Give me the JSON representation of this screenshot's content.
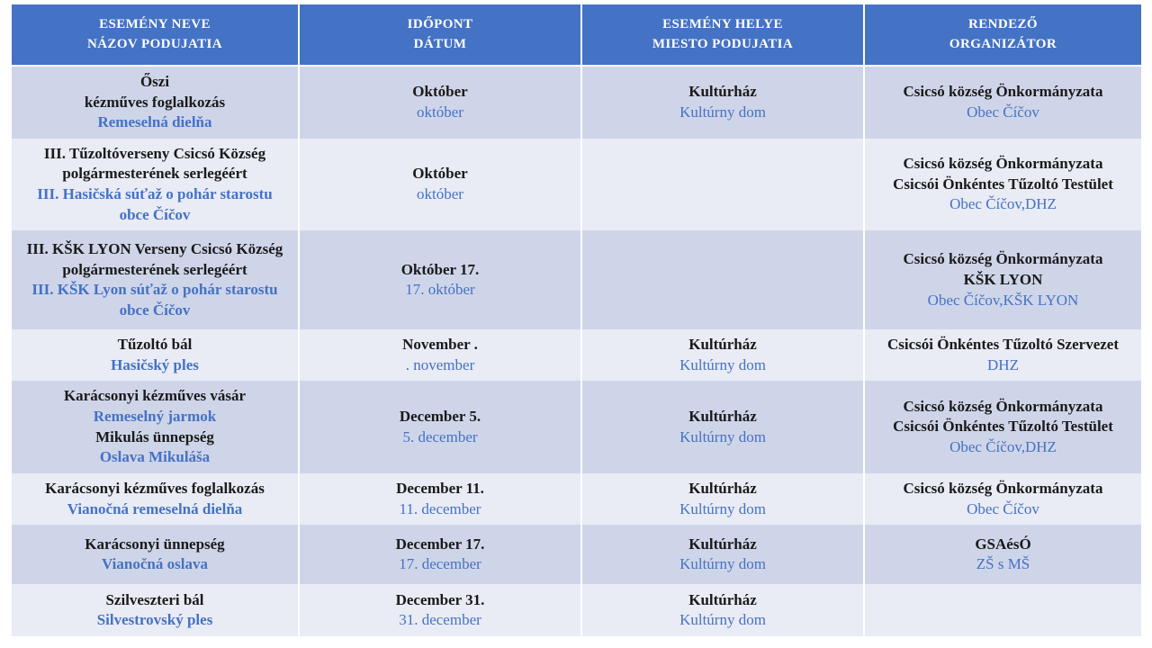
{
  "colors": {
    "header_bg": "#4472C4",
    "header_text": "#FFFFFF",
    "band_dark": "#CFD5E9",
    "band_light": "#E9EBF5",
    "text_black": "#1A1A1A",
    "text_blue": "#4472C4",
    "page_bg": "#FFFFFF"
  },
  "table": {
    "headers": [
      {
        "hu": "ESEMÉNY NEVE",
        "sk": "NÁZOV PODUJATIA"
      },
      {
        "hu": "IDŐPONT",
        "sk": "DÁTUM"
      },
      {
        "hu": "ESEMÉNY HELYE",
        "sk": "MIESTO PODUJATIA"
      },
      {
        "hu": "RENDEZŐ",
        "sk": "ORGANIZÁTOR"
      }
    ],
    "rows": [
      {
        "name": [
          {
            "t": "Őszi",
            "l": "hu"
          },
          {
            "t": "kézműves foglalkozás",
            "l": "hu"
          },
          {
            "t": "Remeselná dielňa",
            "l": "sk"
          }
        ],
        "time": [
          {
            "t": "Október",
            "l": "hu"
          },
          {
            "t": "október",
            "l": "sk"
          }
        ],
        "place": [
          {
            "t": "Kultúrház",
            "l": "hu"
          },
          {
            "t": "Kultúrny dom",
            "l": "sk"
          }
        ],
        "org": [
          {
            "t": "Csicsó község Önkormányzata",
            "l": "hu"
          },
          {
            "t": "Obec Číčov",
            "l": "sk"
          }
        ]
      },
      {
        "name": [
          {
            "t": "III. Tűzoltóverseny Csicsó Község polgármesterének serlegéért",
            "l": "hu"
          },
          {
            "t": "III. Hasičská súťaž o pohár starostu obce Číčov",
            "l": "sk"
          }
        ],
        "time": [
          {
            "t": "Október",
            "l": "hu"
          },
          {
            "t": "október",
            "l": "sk"
          }
        ],
        "place": [],
        "org": [
          {
            "t": "Csicsó község Önkormányzata",
            "l": "hu"
          },
          {
            "t": "Csicsói Önkéntes Tűzoltó Testület",
            "l": "hu"
          },
          {
            "t": "Obec Číčov,DHZ",
            "l": "sk"
          }
        ]
      },
      {
        "name": [
          {
            "t": "III. KŠK LYON Verseny Csicsó Község polgármesterének serlegéért",
            "l": "hu"
          },
          {
            "t": "III. KŠK Lyon súťaž o pohár starostu obce Číčov",
            "l": "sk"
          }
        ],
        "time": [
          {
            "t": "Október 17.",
            "l": "hu"
          },
          {
            "t": "17. október",
            "l": "sk"
          }
        ],
        "place": [],
        "org": [
          {
            "t": "Csicsó község Önkormányzata",
            "l": "hu"
          },
          {
            "t": "KŠK LYON",
            "l": "hu"
          },
          {
            "t": "Obec Číčov,KŠK LYON",
            "l": "sk"
          }
        ]
      },
      {
        "name": [
          {
            "t": "Tűzoltó bál",
            "l": "hu"
          },
          {
            "t": "Hasičský ples",
            "l": "sk"
          }
        ],
        "time": [
          {
            "t": "November .",
            "l": "hu"
          },
          {
            "t": ". november",
            "l": "sk"
          }
        ],
        "place": [
          {
            "t": "Kultúrház",
            "l": "hu"
          },
          {
            "t": "Kultúrny dom",
            "l": "sk"
          }
        ],
        "org": [
          {
            "t": "Csicsói Önkéntes Tűzoltó Szervezet",
            "l": "hu"
          },
          {
            "t": "DHZ",
            "l": "sk"
          }
        ]
      },
      {
        "name": [
          {
            "t": "Karácsonyi kézműves vásár",
            "l": "hu"
          },
          {
            "t": "Remeselný jarmok",
            "l": "sk"
          },
          {
            "t": "Mikulás ünnepség",
            "l": "hu"
          },
          {
            "t": "Oslava Mikuláša",
            "l": "sk"
          }
        ],
        "time": [
          {
            "t": "December 5.",
            "l": "hu"
          },
          {
            "t": "5. december",
            "l": "sk"
          }
        ],
        "place": [
          {
            "t": "Kultúrház",
            "l": "hu"
          },
          {
            "t": "Kultúrny dom",
            "l": "sk"
          }
        ],
        "org": [
          {
            "t": "Csicsó község Önkormányzata",
            "l": "hu"
          },
          {
            "t": "Csicsói Önkéntes Tűzoltó Testület",
            "l": "hu"
          },
          {
            "t": "Obec Číčov,DHZ",
            "l": "sk"
          }
        ]
      },
      {
        "name": [
          {
            "t": "Karácsonyi kézműves foglalkozás",
            "l": "hu"
          },
          {
            "t": "Vianočná remeselná dielňa",
            "l": "sk"
          }
        ],
        "time": [
          {
            "t": "December 11.",
            "l": "hu"
          },
          {
            "t": "11. december",
            "l": "sk"
          }
        ],
        "place": [
          {
            "t": "Kultúrház",
            "l": "hu"
          },
          {
            "t": "Kultúrny dom",
            "l": "sk"
          }
        ],
        "org": [
          {
            "t": "Csicsó község Önkormányzata",
            "l": "hu"
          },
          {
            "t": "Obec Číčov",
            "l": "sk"
          }
        ]
      },
      {
        "name": [
          {
            "t": "Karácsonyi ünnepség",
            "l": "hu"
          },
          {
            "t": "Vianočná oslava",
            "l": "sk"
          }
        ],
        "time": [
          {
            "t": "December 17.",
            "l": "hu"
          },
          {
            "t": "17. december",
            "l": "sk"
          }
        ],
        "place": [
          {
            "t": "Kultúrház",
            "l": "hu"
          },
          {
            "t": "Kultúrny dom",
            "l": "sk"
          }
        ],
        "org": [
          {
            "t": "GSAésÓ",
            "l": "hu"
          },
          {
            "t": "ZŠ s MŠ",
            "l": "sk"
          }
        ]
      },
      {
        "name": [
          {
            "t": "Szilveszteri bál",
            "l": "hu"
          },
          {
            "t": "Silvestrovský ples",
            "l": "sk"
          }
        ],
        "time": [
          {
            "t": "December 31.",
            "l": "hu"
          },
          {
            "t": "31. december",
            "l": "sk"
          }
        ],
        "place": [
          {
            "t": "Kultúrház",
            "l": "hu"
          },
          {
            "t": "Kultúrny dom",
            "l": "sk"
          }
        ],
        "org": []
      }
    ]
  }
}
